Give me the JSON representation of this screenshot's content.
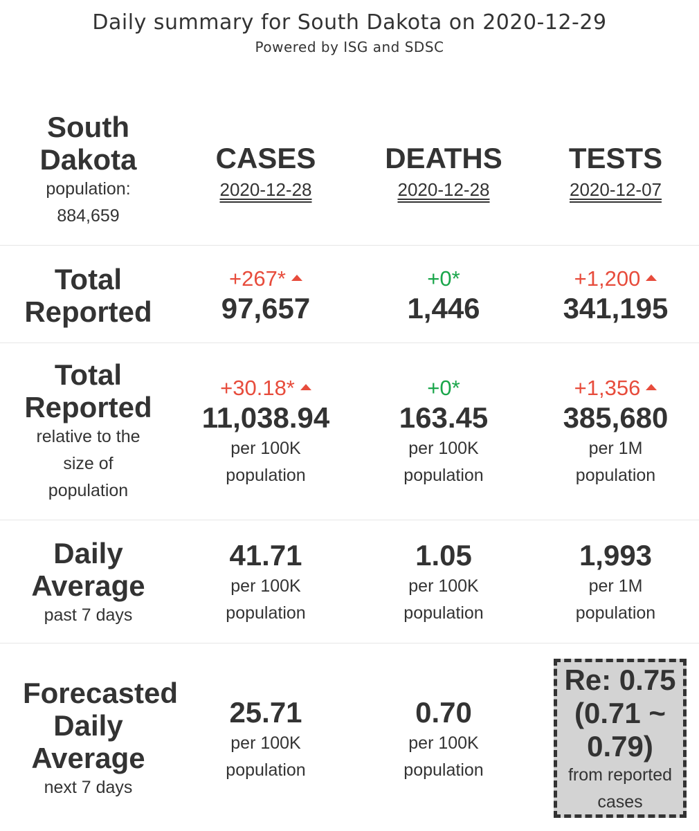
{
  "header": {
    "title": "Daily summary for South Dakota on 2020-12-29",
    "subtitle": "Powered by ISG and SDSC"
  },
  "region": {
    "name_line1": "South",
    "name_line2": "Dakota",
    "population_label": "population:",
    "population_value": "884,659"
  },
  "columns": [
    {
      "title": "CASES",
      "date": "2020-12-28"
    },
    {
      "title": "DEATHS",
      "date": "2020-12-28"
    },
    {
      "title": "TESTS",
      "date": "2020-12-07"
    }
  ],
  "total_reported": {
    "label_line1": "Total",
    "label_line2": "Reported",
    "cells": [
      {
        "delta": "+267*",
        "trend": "up",
        "value": "97,657"
      },
      {
        "delta": "+0*",
        "trend": "flat",
        "value": "1,446"
      },
      {
        "delta": "+1,200",
        "trend": "up",
        "value": "341,195"
      }
    ]
  },
  "relative": {
    "label_line1": "Total",
    "label_line2": "Reported",
    "sub_line1": "relative to the",
    "sub_line2": "size of",
    "sub_line3": "population",
    "cells": [
      {
        "delta": "+30.18*",
        "trend": "up",
        "value": "11,038.94",
        "unit1": "per 100K",
        "unit2": "population"
      },
      {
        "delta": "+0*",
        "trend": "flat",
        "value": "163.45",
        "unit1": "per 100K",
        "unit2": "population"
      },
      {
        "delta": "+1,356",
        "trend": "up",
        "value": "385,680",
        "unit1": "per 1M",
        "unit2": "population"
      }
    ]
  },
  "daily_average": {
    "label_line1": "Daily",
    "label_line2": "Average",
    "sub": "past 7 days",
    "cells": [
      {
        "value": "41.71",
        "unit1": "per 100K",
        "unit2": "population"
      },
      {
        "value": "1.05",
        "unit1": "per 100K",
        "unit2": "population"
      },
      {
        "value": "1,993",
        "unit1": "per 1M",
        "unit2": "population"
      }
    ]
  },
  "forecast": {
    "label_line1": "Forecasted",
    "label_line2": "Daily",
    "label_line3": "Average",
    "sub": "next 7 days",
    "cells": [
      {
        "value": "25.71",
        "unit1": "per 100K",
        "unit2": "population"
      },
      {
        "value": "0.70",
        "unit1": "per 100K",
        "unit2": "population"
      }
    ],
    "re": {
      "line1": "Re: 0.75",
      "line2": "(0.71 ~",
      "line3": "0.79)",
      "sub1": "from reported",
      "sub2": "cases"
    }
  },
  "colors": {
    "increase": "#e74c3c",
    "no_change": "#1aa64b",
    "text": "#333333",
    "re_box_bg": "#d3d3d3"
  },
  "icons": {
    "increase": "triangle-up-icon"
  }
}
